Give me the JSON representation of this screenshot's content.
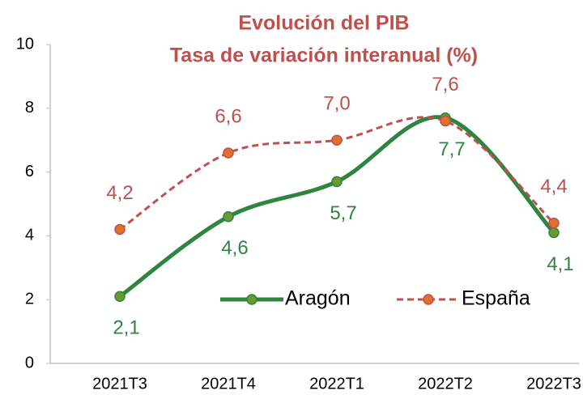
{
  "chart_data": {
    "type": "line",
    "title": "Evolución del PIB",
    "subtitle": "Tasa de variación interanual (%)",
    "categories": [
      "2021T3",
      "2021T4",
      "2022T1",
      "2022T2",
      "2022T3"
    ],
    "series": [
      {
        "name": "Aragón",
        "color": "#2e8540",
        "marker_color": "#6a9a2e",
        "dashed": false,
        "values": [
          2.1,
          4.6,
          5.7,
          7.7,
          4.1
        ],
        "value_labels": [
          "2,1",
          "4,6",
          "5,7",
          "7,7",
          "4,1"
        ]
      },
      {
        "name": "España",
        "color": "#c0504d",
        "marker_color": "#e0702e",
        "dashed": true,
        "values": [
          4.2,
          6.6,
          7.0,
          7.6,
          4.4
        ],
        "value_labels": [
          "4,2",
          "6,6",
          "7,0",
          "7,6",
          "4,4"
        ]
      }
    ],
    "ylim": [
      0,
      10
    ],
    "yticks": [
      0,
      2,
      4,
      6,
      8,
      10
    ],
    "grid": false
  }
}
